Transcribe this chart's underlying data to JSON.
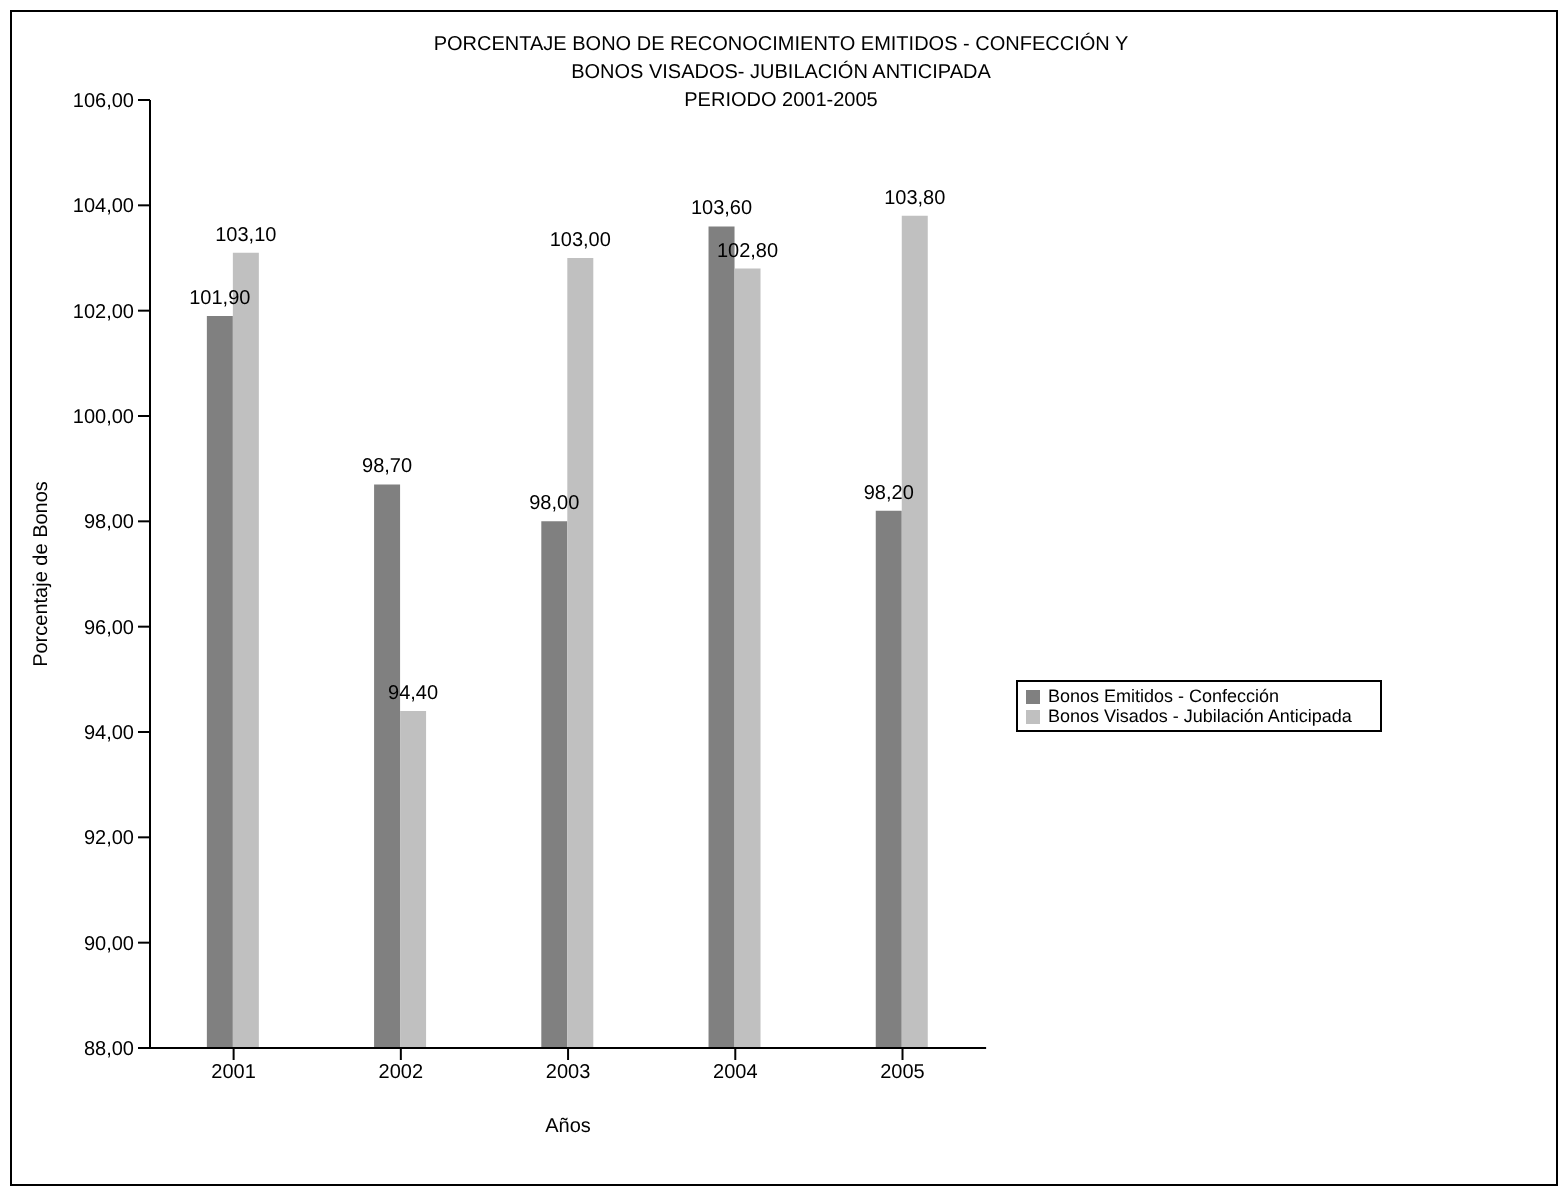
{
  "chart_data": {
    "type": "bar",
    "title": "PORCENTAJE BONO DE RECONOCIMIENTO EMITIDOS - CONFECCIÓN Y\nBONOS VISADOS- JUBILACIÓN ANTICIPADA\nPERIODO 2001-2005",
    "xlabel": "Años",
    "ylabel": "Porcentaje de Bonos",
    "categories": [
      "2001",
      "2002",
      "2003",
      "2004",
      "2005"
    ],
    "series": [
      {
        "name": "Bonos Emitidos - Confección",
        "color": "#808080",
        "values": [
          101.9,
          98.7,
          98.0,
          103.6,
          98.2
        ],
        "value_labels": [
          "101,90",
          "98,70",
          "98,00",
          "103,60",
          "98,20"
        ]
      },
      {
        "name": "Bonos Visados - Jubilación Anticipada",
        "color": "#c0c0c0",
        "values": [
          103.1,
          94.4,
          103.0,
          102.8,
          103.8
        ],
        "value_labels": [
          "103,10",
          "94,40",
          "103,00",
          "102,80",
          "103,80"
        ]
      }
    ],
    "ylim": [
      88,
      106
    ],
    "yticks": [
      {
        "value": 88,
        "label": "88,00"
      },
      {
        "value": 90,
        "label": "90,00"
      },
      {
        "value": 92,
        "label": "92,00"
      },
      {
        "value": 94,
        "label": "94,00"
      },
      {
        "value": 96,
        "label": "96,00"
      },
      {
        "value": 98,
        "label": "98,00"
      },
      {
        "value": 100,
        "label": "100,00"
      },
      {
        "value": 102,
        "label": "102,00"
      },
      {
        "value": 104,
        "label": "104,00"
      },
      {
        "value": 106,
        "label": "106,00"
      }
    ],
    "grid": false,
    "legend": "right"
  }
}
